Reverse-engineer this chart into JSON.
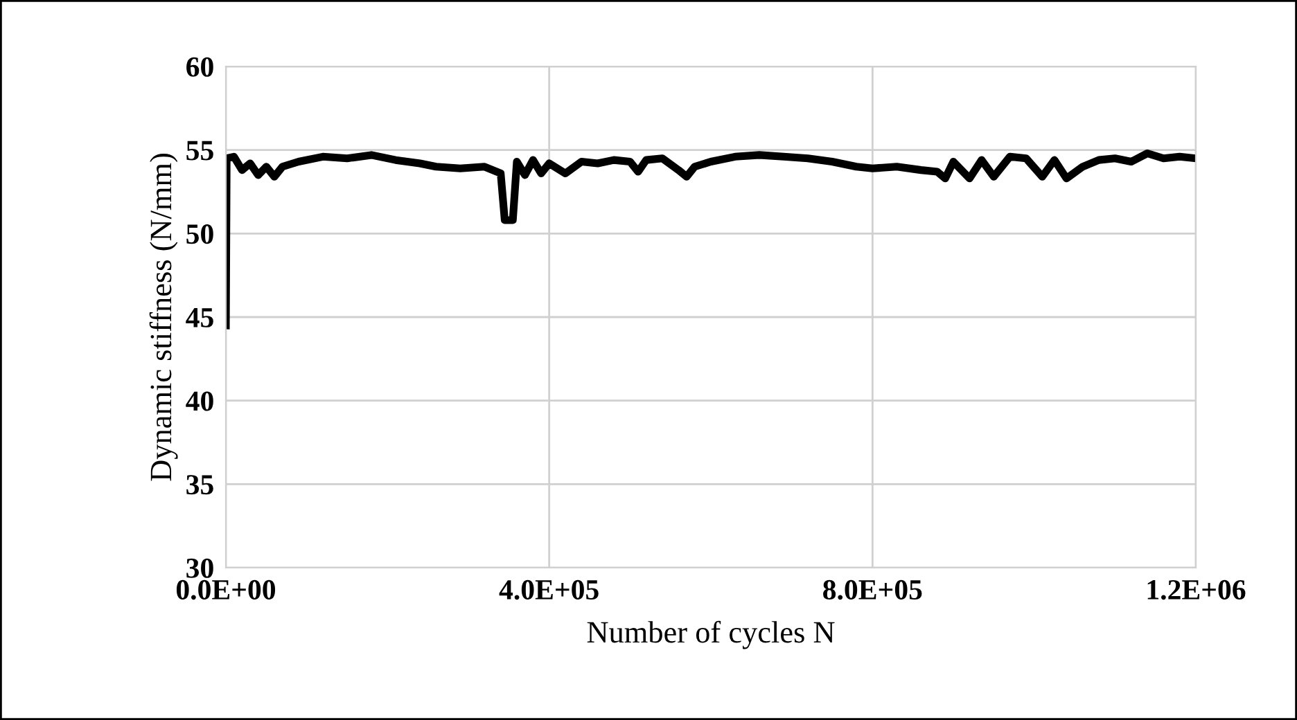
{
  "chart_data": {
    "type": "line",
    "xlabel": "Number of cycles N",
    "ylabel": "Dynamic stiffness (N/mm)",
    "x": [
      0,
      1000,
      10000,
      20000,
      30000,
      40000,
      50000,
      60000,
      70000,
      90000,
      120000,
      150000,
      180000,
      210000,
      240000,
      260000,
      290000,
      320000,
      340000,
      345000,
      355000,
      360000,
      370000,
      380000,
      390000,
      400000,
      420000,
      440000,
      460000,
      480000,
      500000,
      510000,
      520000,
      540000,
      560000,
      570000,
      580000,
      600000,
      630000,
      660000,
      690000,
      720000,
      750000,
      780000,
      800000,
      830000,
      860000,
      880000,
      890000,
      900000,
      920000,
      935000,
      950000,
      970000,
      990000,
      1010000,
      1025000,
      1040000,
      1060000,
      1080000,
      1100000,
      1120000,
      1140000,
      1160000,
      1180000,
      1200000
    ],
    "series": [
      {
        "color": "#000000",
        "values": [
          44.5,
          54.5,
          54.6,
          53.8,
          54.2,
          53.5,
          54.0,
          53.4,
          54.0,
          54.3,
          54.6,
          54.5,
          54.7,
          54.4,
          54.2,
          54.0,
          53.9,
          54.0,
          53.6,
          50.8,
          50.8,
          54.3,
          53.5,
          54.4,
          53.6,
          54.2,
          53.6,
          54.3,
          54.2,
          54.4,
          54.3,
          53.7,
          54.4,
          54.5,
          53.8,
          53.4,
          54.0,
          54.3,
          54.6,
          54.7,
          54.6,
          54.5,
          54.3,
          54.0,
          53.9,
          54.0,
          53.8,
          53.7,
          53.3,
          54.3,
          53.3,
          54.4,
          53.4,
          54.6,
          54.5,
          53.4,
          54.4,
          53.3,
          54.0,
          54.4,
          54.5,
          54.3,
          54.8,
          54.5,
          54.6,
          54.5
        ]
      }
    ],
    "xlim": [
      0,
      1200000
    ],
    "xticks": [
      {
        "value": 0,
        "label": "0.0E+00"
      },
      {
        "value": 400000,
        "label": "4.0E+05"
      },
      {
        "value": 800000,
        "label": "8.0E+05"
      },
      {
        "value": 1200000,
        "label": "1.2E+06"
      }
    ],
    "ylim": [
      30,
      60
    ],
    "yticks": [
      30,
      35,
      40,
      45,
      50,
      55,
      60
    ],
    "grid": true,
    "marker": "none",
    "line_style": "solid"
  }
}
